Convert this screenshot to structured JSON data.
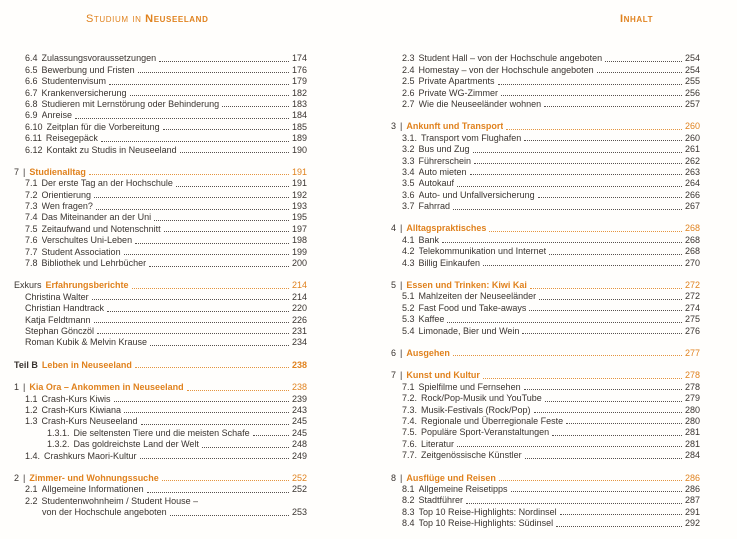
{
  "header": {
    "left": {
      "regular": "Studium in ",
      "bold": "Neuseeland"
    },
    "right": "Inhalt"
  },
  "colors": {
    "accent": "#e0821e",
    "text": "#3a3430"
  },
  "left_entries": [
    {
      "type": "item",
      "num": "6.4",
      "label": "Zulassungsvoraussetzungen",
      "page": "174"
    },
    {
      "type": "item",
      "num": "6.5",
      "label": "Bewerbung und Fristen",
      "page": "176"
    },
    {
      "type": "item",
      "num": "6.6",
      "label": "Studentenvisum",
      "page": "179"
    },
    {
      "type": "item",
      "num": "6.7",
      "label": "Krankenversicherung",
      "page": "182"
    },
    {
      "type": "item",
      "num": "6.8",
      "label": "Studieren mit Lernstörung oder Behinderung",
      "page": "183"
    },
    {
      "type": "item",
      "num": "6.9",
      "label": "Anreise",
      "page": "184"
    },
    {
      "type": "item",
      "num": "6.10",
      "label": "Zeitplan für die Vorbereitung",
      "page": "185"
    },
    {
      "type": "item",
      "num": "6.11",
      "label": "Reisegepäck",
      "page": "189"
    },
    {
      "type": "item",
      "num": "6.12",
      "label": "Kontakt zu Studis in Neuseeland",
      "page": "190"
    },
    {
      "type": "chapter",
      "num": "7",
      "sep": "|",
      "label": "Studienalltag",
      "page": "191",
      "gap": true
    },
    {
      "type": "item",
      "num": "7.1",
      "label": "Der erste Tag an der Hochschule",
      "page": "191"
    },
    {
      "type": "item",
      "num": "7.2",
      "label": "Orientierung",
      "page": "192"
    },
    {
      "type": "item",
      "num": "7.3",
      "label": "Wen fragen?",
      "page": "193"
    },
    {
      "type": "item",
      "num": "7.4",
      "label": "Das Miteinander an der Uni",
      "page": "195"
    },
    {
      "type": "item",
      "num": "7.5",
      "label": "Zeitaufwand und Notenschnitt",
      "page": "197"
    },
    {
      "type": "item",
      "num": "7.6",
      "label": "Verschultes Uni-Leben",
      "page": "198"
    },
    {
      "type": "item",
      "num": "7.7",
      "label": "Student Association",
      "page": "199"
    },
    {
      "type": "item",
      "num": "7.8",
      "label": "Bibliothek und Lehrbücher",
      "page": "200"
    },
    {
      "type": "excursus",
      "prefix": "Exkurs",
      "label": "Erfahrungsberichte",
      "page": "214",
      "gap": true
    },
    {
      "type": "person",
      "label": "Christina Walter",
      "page": "214"
    },
    {
      "type": "person",
      "label": "Christian Handtrack",
      "page": "220"
    },
    {
      "type": "person",
      "label": "Katja Feldtmann",
      "page": "226"
    },
    {
      "type": "person",
      "label": "Stephan Gönczöl",
      "page": "231"
    },
    {
      "type": "person",
      "label": "Roman Kubik & Melvin Krause",
      "page": "234"
    },
    {
      "type": "part",
      "prefix": "Teil B",
      "label": "Leben in Neuseeland",
      "page": "238",
      "gap": true
    },
    {
      "type": "chapter",
      "num": "1",
      "sep": "|",
      "label": "Kia Ora – Ankommen in Neuseeland",
      "page": "238",
      "gap": true
    },
    {
      "type": "item",
      "num": "1.1",
      "label": "Crash-Kurs Kiwis",
      "page": "239"
    },
    {
      "type": "item",
      "num": "1.2",
      "label": "Crash-Kurs Kiwiana",
      "page": "243"
    },
    {
      "type": "item",
      "num": "1.3",
      "label": "Crash-Kurs Neuseeland",
      "page": "245"
    },
    {
      "type": "subitem",
      "num": "1.3.1.",
      "label": "Die seltensten Tiere und die meisten Schafe",
      "page": "245"
    },
    {
      "type": "subitem",
      "num": "1.3.2.",
      "label": "Das goldreichste Land der Welt",
      "page": "248"
    },
    {
      "type": "item",
      "num": "1.4.",
      "label": "Crashkurs Maori-Kultur",
      "page": "249"
    },
    {
      "type": "chapter",
      "num": "2",
      "sep": "|",
      "label": "Zimmer- und Wohnungssuche",
      "page": "252",
      "gap": true
    },
    {
      "type": "item",
      "num": "2.1",
      "label": "Allgemeine Informationen",
      "page": "252"
    },
    {
      "type": "wrap-head",
      "num": "2.2",
      "label": "Studentenwohnheim / Student House –"
    },
    {
      "type": "wrap-tail",
      "label": "von der Hochschule angeboten",
      "page": "253"
    }
  ],
  "right_entries": [
    {
      "type": "item",
      "num": "2.3",
      "label": "Student Hall – von der Hochschule angeboten",
      "page": "254"
    },
    {
      "type": "item",
      "num": "2.4",
      "label": "Homestay – von der Hochschule angeboten",
      "page": "254"
    },
    {
      "type": "item",
      "num": "2.5",
      "label": "Private Apartments",
      "page": "255"
    },
    {
      "type": "item",
      "num": "2.6",
      "label": "Private WG-Zimmer",
      "page": "256"
    },
    {
      "type": "item",
      "num": "2.7",
      "label": "Wie die Neuseeländer wohnen",
      "page": "257"
    },
    {
      "type": "chapter",
      "num": "3",
      "sep": "|",
      "label": "Ankunft und Transport",
      "page": "260",
      "gap": true
    },
    {
      "type": "item",
      "num": "3.1.",
      "label": "Transport vom Flughafen",
      "page": "260"
    },
    {
      "type": "item",
      "num": "3.2",
      "label": "Bus und Zug",
      "page": "261"
    },
    {
      "type": "item",
      "num": "3.3",
      "label": "Führerschein",
      "page": "262"
    },
    {
      "type": "item",
      "num": "3.4",
      "label": "Auto mieten",
      "page": "263"
    },
    {
      "type": "item",
      "num": "3.5",
      "label": "Autokauf",
      "page": "264"
    },
    {
      "type": "item",
      "num": "3.6",
      "label": "Auto- und Unfallversicherung",
      "page": "266"
    },
    {
      "type": "item",
      "num": "3.7",
      "label": "Fahrrad",
      "page": "267"
    },
    {
      "type": "chapter",
      "num": "4",
      "sep": "|",
      "label": "Alltagspraktisches",
      "page": "268",
      "gap": true
    },
    {
      "type": "item",
      "num": "4.1",
      "label": "Bank",
      "page": "268"
    },
    {
      "type": "item",
      "num": "4.2",
      "label": "Telekommunikation und Internet",
      "page": "268"
    },
    {
      "type": "item",
      "num": "4.3",
      "label": "Billig Einkaufen",
      "page": "270"
    },
    {
      "type": "chapter",
      "num": "5",
      "sep": "|",
      "label": "Essen und Trinken: Kiwi Kai",
      "page": "272",
      "gap": true
    },
    {
      "type": "item",
      "num": "5.1",
      "label": "Mahlzeiten der Neuseeländer",
      "page": "272"
    },
    {
      "type": "item",
      "num": "5.2",
      "label": "Fast Food und Take-aways",
      "page": "274"
    },
    {
      "type": "item",
      "num": "5.3",
      "label": "Kaffee",
      "page": "275"
    },
    {
      "type": "item",
      "num": "5.4",
      "label": "Limonade, Bier und Wein",
      "page": "276"
    },
    {
      "type": "chapter",
      "num": "6",
      "sep": "|",
      "label": "Ausgehen",
      "page": "277",
      "gap": true
    },
    {
      "type": "chapter",
      "num": "7",
      "sep": "|",
      "label": "Kunst und Kultur",
      "page": "278",
      "gap": true
    },
    {
      "type": "item",
      "num": "7.1",
      "label": "Spielfilme und Fernsehen",
      "page": "278"
    },
    {
      "type": "item",
      "num": "7.2.",
      "label": "Rock/Pop-Musik und YouTube",
      "page": "279"
    },
    {
      "type": "item",
      "num": "7.3.",
      "label": "Musik-Festivals (Rock/Pop)",
      "page": "280"
    },
    {
      "type": "item",
      "num": "7.4.",
      "label": "Regionale und Überregionale Feste",
      "page": "280"
    },
    {
      "type": "item",
      "num": "7.5.",
      "label": "Populäre Sport-Veranstaltungen",
      "page": "281"
    },
    {
      "type": "item",
      "num": "7.6.",
      "label": "Literatur",
      "page": "281"
    },
    {
      "type": "item",
      "num": "7.7.",
      "label": "Zeitgenössische Künstler",
      "page": "284"
    },
    {
      "type": "chapter",
      "num": "8",
      "sep": "|",
      "label": "Ausflüge und Reisen",
      "page": "286",
      "gap": true
    },
    {
      "type": "item",
      "num": "8.1",
      "label": "Allgemeine Reisetipps",
      "page": "286"
    },
    {
      "type": "item",
      "num": "8.2",
      "label": "Stadtführer",
      "page": "287"
    },
    {
      "type": "item",
      "num": "8.3",
      "label": "Top 10 Reise-Highlights: Nordinsel",
      "page": "291"
    },
    {
      "type": "item",
      "num": "8.4",
      "label": "Top 10 Reise-Highlights: Südinsel",
      "page": "292"
    }
  ]
}
